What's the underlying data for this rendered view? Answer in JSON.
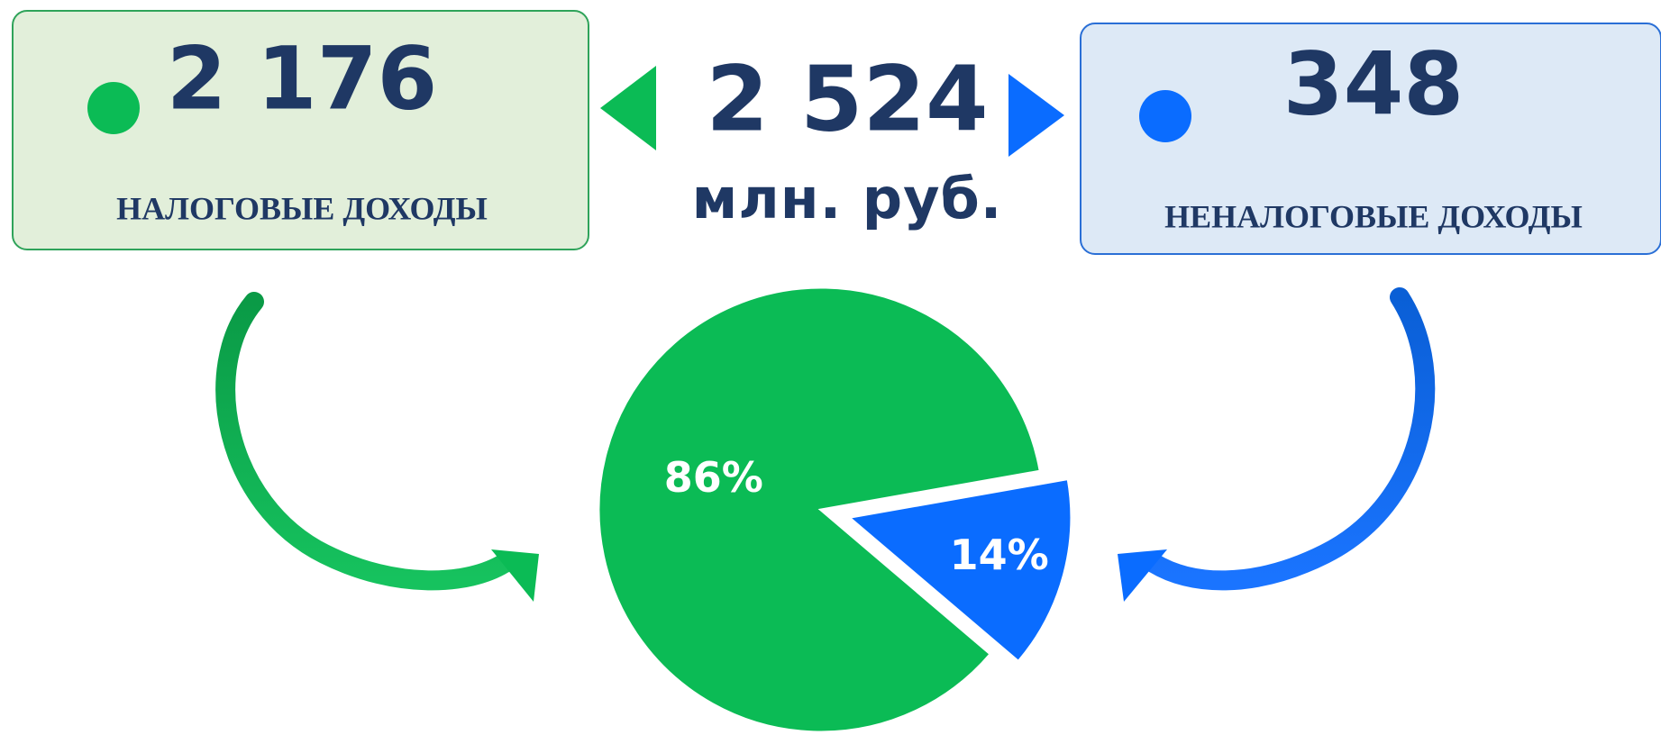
{
  "chart_data": {
    "type": "pie",
    "categories": [
      "НАЛОГОВЫЕ ДОХОДЫ",
      "НЕНАЛОГОВЫЕ ДОХОДЫ"
    ],
    "values": [
      86,
      14
    ],
    "value_labels": [
      "86%",
      "14%"
    ],
    "colors": [
      "#0bbb55",
      "#0a6cff"
    ],
    "amounts": [
      2176,
      348
    ],
    "amount_labels": [
      "2 176",
      "348"
    ],
    "total": 2524,
    "total_label": "2 524",
    "unit": "млн. руб."
  }
}
